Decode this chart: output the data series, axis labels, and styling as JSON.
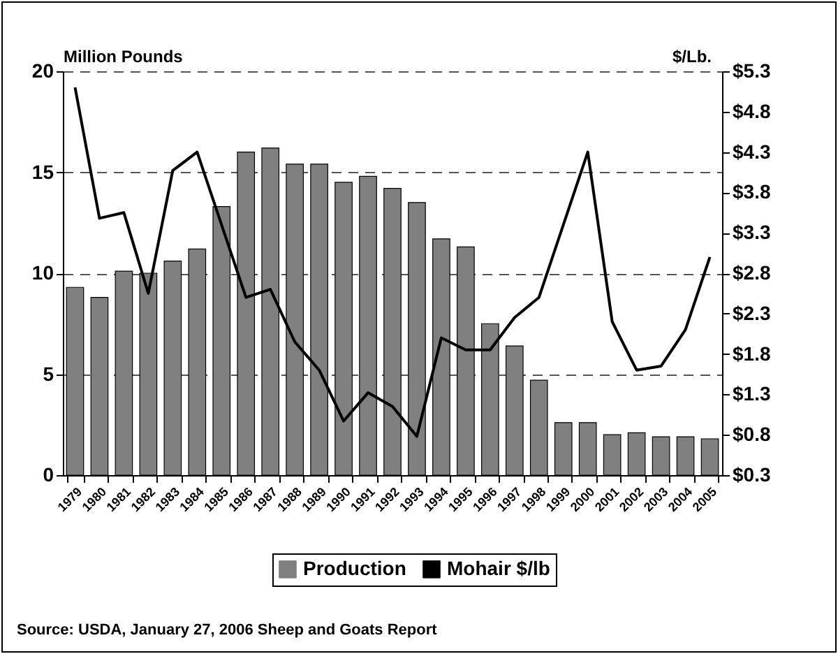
{
  "chart_data": {
    "type": "bar",
    "ylabel": "Million Pounds",
    "y2label": "$/Lb.",
    "annotations": [
      "Source:  USDA, January 27, 2006 Sheep and Goats Report"
    ],
    "categories": [
      "1979",
      "1980",
      "1981",
      "1982",
      "1983",
      "1984",
      "1985",
      "1986",
      "1987",
      "1988",
      "1989",
      "1990",
      "1991",
      "1992",
      "1993",
      "1994",
      "1995",
      "1996",
      "1997",
      "1998",
      "1999",
      "2000",
      "2001",
      "2002",
      "2003",
      "2004",
      "2005"
    ],
    "series": [
      {
        "name": "Production",
        "color": "#808080",
        "values": [
          9.3,
          8.8,
          10.1,
          10.0,
          10.6,
          11.2,
          13.3,
          16.0,
          16.2,
          15.4,
          15.4,
          14.5,
          14.8,
          14.2,
          13.5,
          11.7,
          11.3,
          7.5,
          6.4,
          4.7,
          2.6,
          2.6,
          2.0,
          2.1,
          1.9,
          1.9,
          1.8
        ]
      },
      {
        "name": "Mohair $/lb",
        "type": "line",
        "axis": "y2",
        "color": "#000000",
        "values": [
          5.1,
          3.48,
          3.55,
          2.55,
          4.07,
          4.3,
          3.4,
          2.5,
          2.6,
          1.95,
          1.6,
          0.97,
          1.32,
          1.15,
          0.78,
          2.0,
          1.85,
          1.85,
          2.25,
          2.5,
          3.4,
          4.3,
          2.2,
          1.6,
          1.65,
          2.1,
          3.0
        ]
      }
    ],
    "ylim": [
      0,
      20
    ],
    "yticks": [
      0,
      5,
      10,
      15,
      20
    ],
    "y2lim": [
      0.3,
      5.3
    ],
    "y2ticks": [
      {
        "value": 0.3,
        "label": "$0.3"
      },
      {
        "value": 0.8,
        "label": "$0.8"
      },
      {
        "value": 1.3,
        "label": "$1.3"
      },
      {
        "value": 1.8,
        "label": "$1.8"
      },
      {
        "value": 2.3,
        "label": "$2.3"
      },
      {
        "value": 2.8,
        "label": "$2.8"
      },
      {
        "value": 3.3,
        "label": "$3.3"
      },
      {
        "value": 3.8,
        "label": "$3.8"
      },
      {
        "value": 4.3,
        "label": "$4.3"
      },
      {
        "value": 4.8,
        "label": "$4.8"
      },
      {
        "value": 5.3,
        "label": "$5.3"
      }
    ],
    "grid": "y",
    "legend": "bottom",
    "marker": "none",
    "line_style": "solid"
  }
}
